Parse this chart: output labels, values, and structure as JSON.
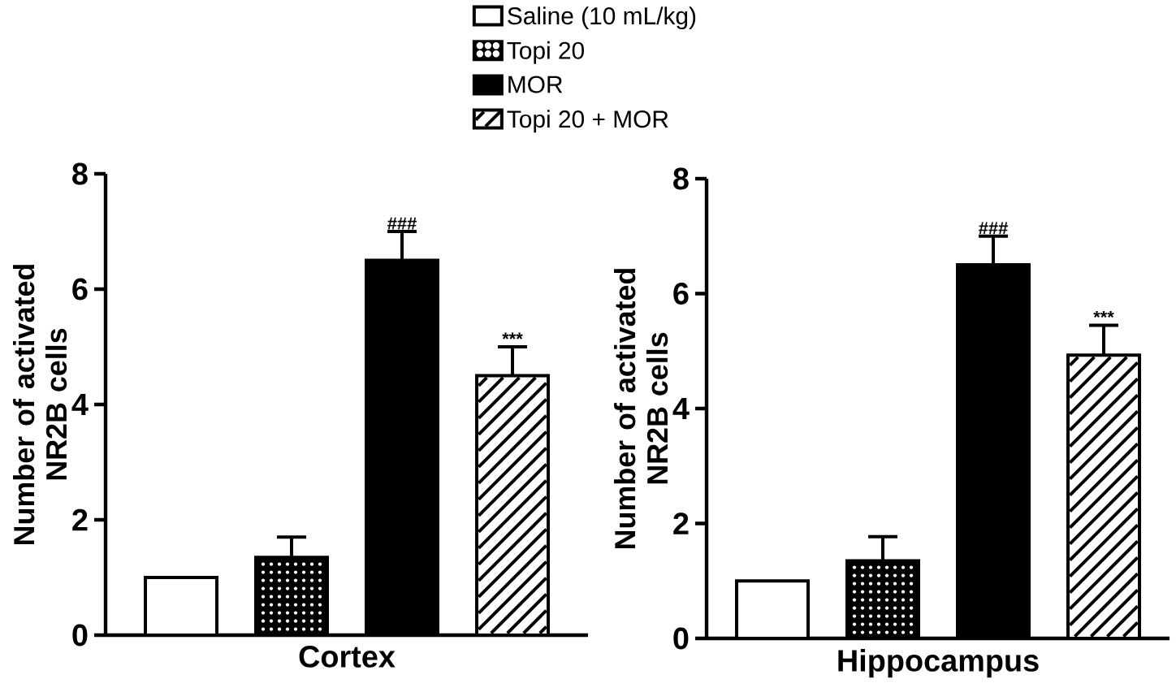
{
  "chart_data": [
    {
      "type": "bar",
      "xlabel": "Cortex",
      "ylabel": "Number of activated NR2B cells",
      "categories": [
        null
      ],
      "ylim": [
        0,
        8
      ],
      "yticks": [
        0,
        2,
        4,
        6,
        8
      ],
      "legend": "top",
      "series": [
        {
          "name": "Saline (10 mL/kg)",
          "color": "#ffffff",
          "values": [
            1.0
          ],
          "errors": [
            null
          ]
        },
        {
          "name": "Topi 20",
          "color": "#000000",
          "values": [
            1.35
          ],
          "errors": [
            0.35
          ]
        },
        {
          "name": "MOR",
          "color": "#000000",
          "values": [
            6.5
          ],
          "errors": [
            0.5
          ],
          "value_labels": [
            "###"
          ]
        },
        {
          "name": "Topi 20 + MOR",
          "color": "#ffffff",
          "values": [
            4.5
          ],
          "errors": [
            0.5
          ],
          "value_labels": [
            "***"
          ]
        }
      ]
    },
    {
      "type": "bar",
      "xlabel": "Hippocampus",
      "ylabel": "Number of activated NR2B cells",
      "categories": [
        null
      ],
      "ylim": [
        0,
        8
      ],
      "yticks": [
        0,
        2,
        4,
        6,
        8
      ],
      "series": [
        {
          "color": "#ffffff",
          "values": [
            1.0
          ],
          "errors": [
            null
          ]
        },
        {
          "color": "#000000",
          "values": [
            1.35
          ],
          "errors": [
            0.42
          ]
        },
        {
          "color": "#000000",
          "values": [
            6.5
          ],
          "errors": [
            0.5
          ],
          "value_labels": [
            "###"
          ]
        },
        {
          "color": "#ffffff",
          "values": [
            4.93
          ],
          "errors": [
            0.52
          ],
          "value_labels": [
            "***"
          ]
        }
      ]
    }
  ]
}
